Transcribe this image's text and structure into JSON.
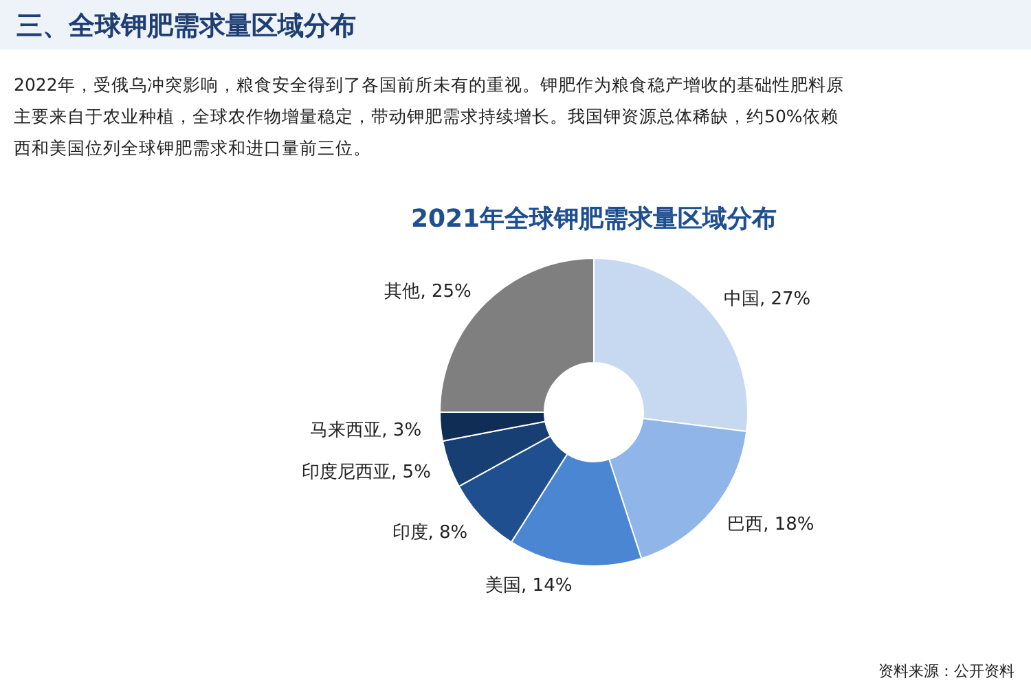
{
  "chart_data": {
    "type": "donut",
    "title": "三、全球钾肥需求量区域分布",
    "subtitle": "2021年全球钾肥需求量区域分布",
    "categories": [
      "中国",
      "巴西",
      "美国",
      "印度",
      "印度尼西亚",
      "马来西亚",
      "其他"
    ],
    "values": [
      27,
      18,
      14,
      8,
      5,
      3,
      25
    ],
    "value_labels": [
      ", 27%",
      ", 18%",
      ", 14%",
      ", 8%",
      ", 5%",
      ", 3%",
      ", 25%"
    ],
    "colors": [
      "#c6d9f1",
      "#8fb5e9",
      "#4a86d2",
      "#1f4f8e",
      "#173f73",
      "#102d55",
      "#7f7f7f"
    ],
    "annotations": [
      "2022年，受俄乌冲突影响，粮食安全得到了各国前所未有的重视。钾肥作为粮食稳产增收的基础性肥料原",
      "主要来自于农业种植，全球农作物增量稳定，带动钾肥需求持续增长。我国钾资源总体稀缺，约50%依赖",
      "西和美国位列全球钾肥需求和进口量前三位。",
      "资料来源：公开资料"
    ]
  }
}
